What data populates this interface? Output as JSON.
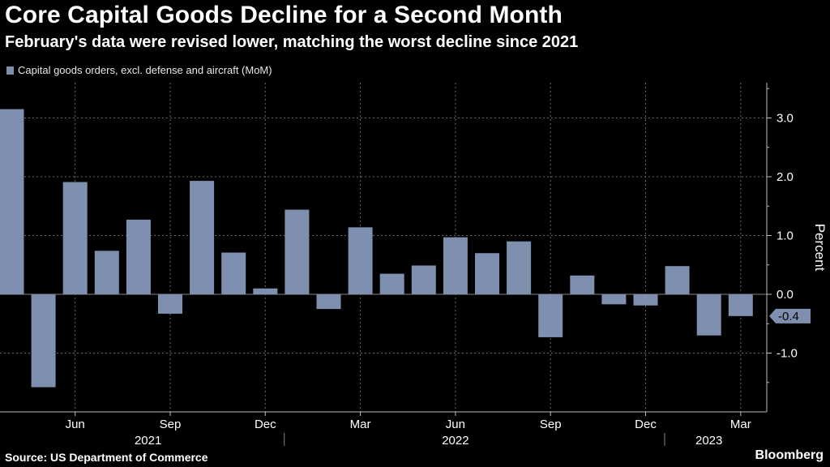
{
  "title": "Core Capital Goods Decline for a Second Month",
  "subtitle": "February's data were revised lower, matching the worst decline since 2021",
  "source": "Source: US Department of Commerce",
  "brand": "Bloomberg",
  "colors": {
    "bar": "#7f8fb0",
    "background": "#000000",
    "grid": "#6a6a6a",
    "text": "#ffffff"
  },
  "chart_data": {
    "type": "bar",
    "legend": [
      "Capital goods orders, excl. defense and aircraft (MoM)"
    ],
    "ylabel": "Percent",
    "ylim": [
      -2.0,
      3.6
    ],
    "yticks": [
      3.0,
      2.0,
      1.0,
      0.0,
      -1.0
    ],
    "ytick_labels": [
      "3.0",
      "2.0",
      "1.0",
      "0.0",
      "-1.0"
    ],
    "x_month_labels": [
      {
        "label": "Jun",
        "index": 2
      },
      {
        "label": "Sep",
        "index": 5
      },
      {
        "label": "Dec",
        "index": 8
      },
      {
        "label": "Mar",
        "index": 11
      },
      {
        "label": "Jun",
        "index": 14
      },
      {
        "label": "Sep",
        "index": 17
      },
      {
        "label": "Dec",
        "index": 20
      },
      {
        "label": "Mar",
        "index": 23
      }
    ],
    "x_year_labels": [
      {
        "label": "2021",
        "center_index": 4.3
      },
      {
        "label": "2022",
        "center_index": 14.0
      },
      {
        "label": "2023",
        "center_index": 22.0
      }
    ],
    "categories": [
      "Apr 2021",
      "May 2021",
      "Jun 2021",
      "Jul 2021",
      "Aug 2021",
      "Sep 2021",
      "Oct 2021",
      "Nov 2021",
      "Dec 2021",
      "Jan 2022",
      "Feb 2022",
      "Mar 2022",
      "Apr 2022",
      "May 2022",
      "Jun 2022",
      "Jul 2022",
      "Aug 2022",
      "Sep 2022",
      "Oct 2022",
      "Nov 2022",
      "Dec 2022",
      "Jan 2023",
      "Feb 2023",
      "Mar 2023"
    ],
    "values": [
      3.15,
      -1.58,
      1.91,
      0.74,
      1.27,
      -0.33,
      1.93,
      0.71,
      0.1,
      1.44,
      -0.25,
      1.14,
      0.35,
      0.49,
      0.97,
      0.7,
      0.9,
      -0.73,
      0.32,
      -0.17,
      -0.19,
      0.48,
      -0.7,
      -0.37
    ],
    "last_value_label": "-0.4"
  }
}
